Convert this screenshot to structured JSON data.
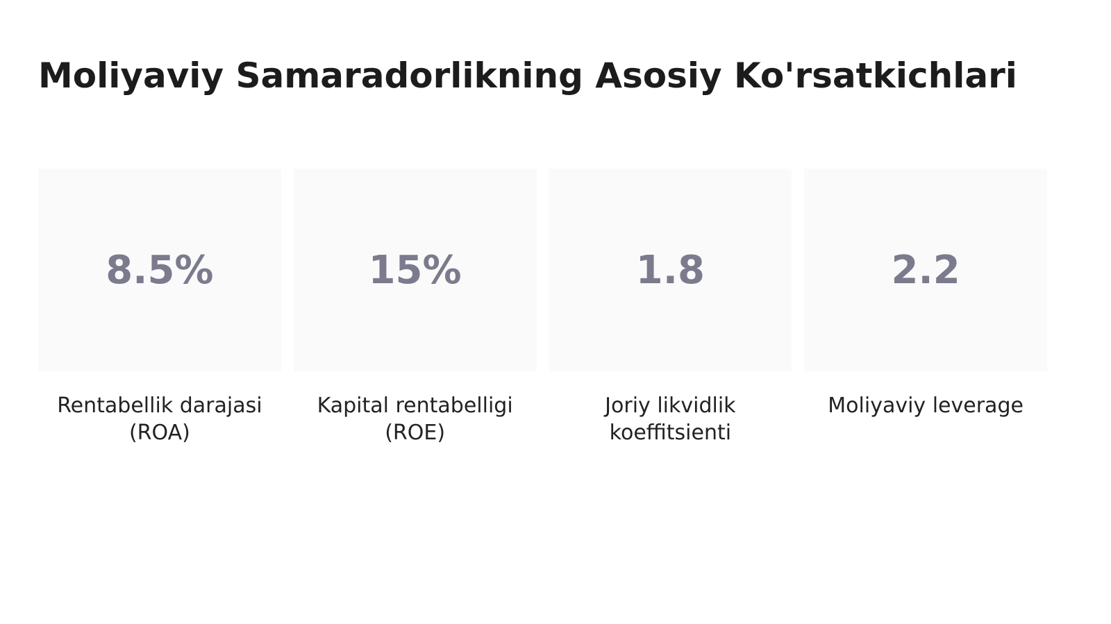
{
  "header": {
    "title": "Moliyaviy Samaradorlikning Asosiy Ko'rsatkichlari"
  },
  "cards": [
    {
      "value": "8.5%",
      "label": "Rentabellik darajasi (ROA)"
    },
    {
      "value": "15%",
      "label": "Kapital rentabelligi (ROE)"
    },
    {
      "value": "1.8",
      "label": "Joriy likvidlik koeffitsienti"
    },
    {
      "value": "2.2",
      "label": "Moliyaviy leverage"
    }
  ]
}
